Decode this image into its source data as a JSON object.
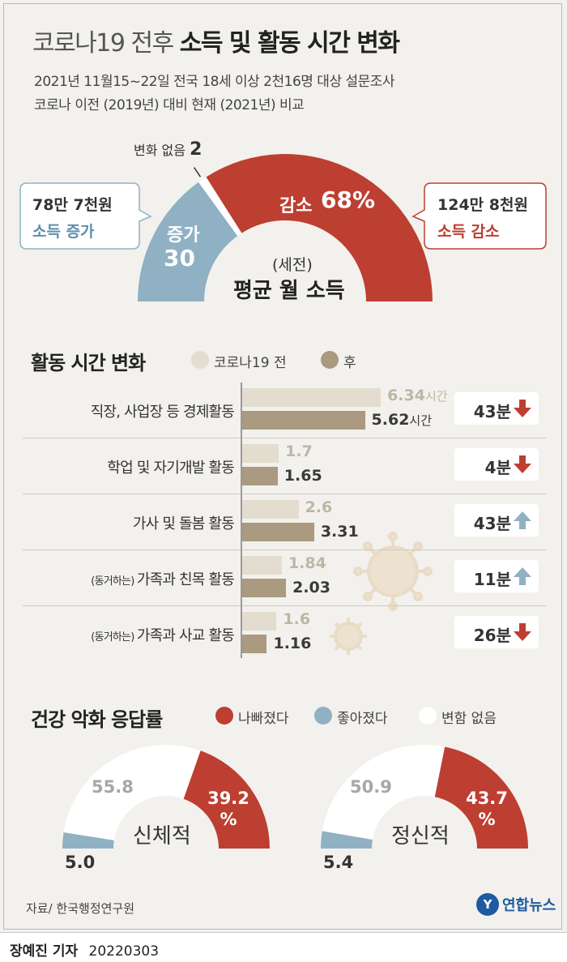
{
  "header": {
    "title_light": "코로나19 전후",
    "title_bold": "소득 및 활동 시간 변화",
    "subtitle_line1": "2021년 11월15~22일 전국 18세 이상 2천16명 대상 설문조사",
    "subtitle_line2": "코로나 이전 (2019년) 대비 현재 (2021년) 비교"
  },
  "income": {
    "no_change_label": "변화 없음",
    "no_change_value": "2",
    "increase_label": "증가",
    "increase_value": "30",
    "decrease_label": "감소",
    "decrease_value": "68%",
    "center_line1": "(세전)",
    "center_line2": "평균 월 소득",
    "increase_callout_amount": "78만 7천원",
    "increase_callout_label": "소득 증가",
    "decrease_callout_amount": "124만 8천원",
    "decrease_callout_label": "소득 감소",
    "colors": {
      "increase": "#8fb1c3",
      "decrease": "#bd3f31",
      "no_change": "#ffffff"
    }
  },
  "activity": {
    "section_title": "활동 시간 변화",
    "legend_before": "코로나19 전",
    "legend_after": "후",
    "unit_label": "시간",
    "rows": [
      {
        "label_small": "",
        "label": "직장, 사업장 등 경제활동",
        "before": 6.34,
        "before_text": "6.34",
        "after": 5.62,
        "after_text": "5.62",
        "delta": "43분",
        "direction": "down"
      },
      {
        "label_small": "",
        "label": "학업 및 자기개발 활동",
        "before": 1.7,
        "before_text": "1.7",
        "after": 1.65,
        "after_text": "1.65",
        "delta": "4분",
        "direction": "down"
      },
      {
        "label_small": "",
        "label": "가사 및 돌봄 활동",
        "before": 2.6,
        "before_text": "2.6",
        "after": 3.31,
        "after_text": "3.31",
        "delta": "43분",
        "direction": "up"
      },
      {
        "label_small": "(동거하는)",
        "label": "가족과 친목 활동",
        "before": 1.84,
        "before_text": "1.84",
        "after": 2.03,
        "after_text": "2.03",
        "delta": "11분",
        "direction": "up"
      },
      {
        "label_small": "(동거하는)",
        "label": "가족과 사교 활동",
        "before": 1.6,
        "before_text": "1.6",
        "after": 1.16,
        "after_text": "1.16",
        "delta": "26분",
        "direction": "down"
      }
    ],
    "colors": {
      "before": "#e2ddce",
      "after": "#a99a80",
      "up": "#8fb1c3",
      "down": "#bd3f31"
    }
  },
  "health": {
    "section_title": "건강 악화 응답률",
    "legend_worse": "나빠졌다",
    "legend_better": "좋아졌다",
    "legend_same": "변함 없음",
    "pct_sign": "%",
    "charts": [
      {
        "name": "신체적",
        "worse": 39.2,
        "worse_text": "39.2",
        "better": 5.0,
        "better_text": "5.0",
        "same": 55.8,
        "same_text": "55.8"
      },
      {
        "name": "정신적",
        "worse": 43.7,
        "worse_text": "43.7",
        "better": 5.4,
        "better_text": "5.4",
        "same": 50.9,
        "same_text": "50.9"
      }
    ],
    "colors": {
      "worse": "#bd3f31",
      "better": "#8fb1c3",
      "same": "#ffffff"
    }
  },
  "chart_data": [
    {
      "type": "pie",
      "title": "평균 월 소득",
      "categories": [
        "증가",
        "변화 없음",
        "감소"
      ],
      "values": [
        30,
        2,
        68
      ]
    },
    {
      "type": "bar",
      "title": "활동 시간 변화",
      "categories": [
        "직장, 사업장 등 경제활동",
        "학업 및 자기개발 활동",
        "가사 및 돌봄 활동",
        "(동거하는) 가족과 친목 활동",
        "(동거하는) 가족과 사교 활동"
      ],
      "series": [
        {
          "name": "코로나19 전",
          "values": [
            6.34,
            1.7,
            2.6,
            1.84,
            1.6
          ]
        },
        {
          "name": "후",
          "values": [
            5.62,
            1.65,
            3.31,
            2.03,
            1.16
          ]
        }
      ]
    },
    {
      "type": "pie",
      "title": "신체적",
      "categories": [
        "나빠졌다",
        "좋아졌다",
        "변함 없음"
      ],
      "values": [
        39.2,
        5.0,
        55.8
      ]
    },
    {
      "type": "pie",
      "title": "정신적",
      "categories": [
        "나빠졌다",
        "좋아졌다",
        "변함 없음"
      ],
      "values": [
        43.7,
        5.4,
        50.9
      ]
    }
  ],
  "footer": {
    "source": "자료/ 한국행정연구원",
    "logo_text": "연합뉴스",
    "reporter": "장예진 기자",
    "date": "20220303"
  }
}
